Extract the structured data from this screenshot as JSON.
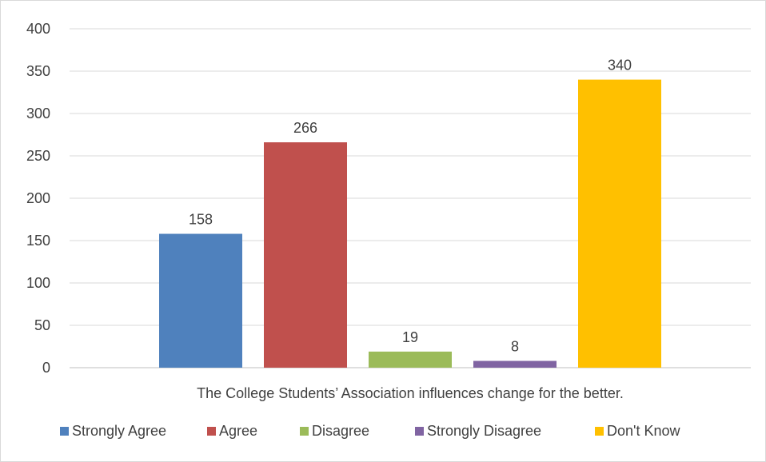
{
  "chart_data": {
    "type": "bar",
    "title": "",
    "xlabel": "",
    "ylabel": "",
    "categories": [
      "The College Students’ Association influences change for the better."
    ],
    "series": [
      {
        "name": "Strongly Agree",
        "values": [
          158
        ],
        "color": "#4f81bd"
      },
      {
        "name": "Agree",
        "values": [
          266
        ],
        "color": "#c0504d"
      },
      {
        "name": "Disagree",
        "values": [
          19
        ],
        "color": "#9bbb59"
      },
      {
        "name": "Strongly Disagree",
        "values": [
          8
        ],
        "color": "#8064a2"
      },
      {
        "name": "Don't Know",
        "values": [
          340
        ],
        "color": "#ffc000"
      }
    ],
    "ylim": [
      0,
      400
    ],
    "yticks": [
      0,
      50,
      100,
      150,
      200,
      250,
      300,
      350,
      400
    ],
    "grid": true,
    "data_labels": true,
    "legend": "bottom"
  }
}
